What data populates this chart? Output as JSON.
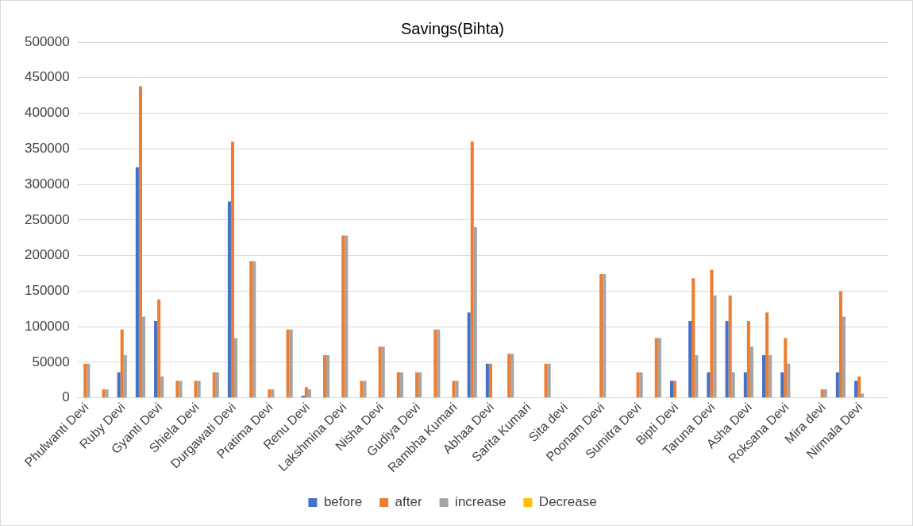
{
  "chart_data": {
    "type": "bar",
    "title": "Savings(Bihta)",
    "categories": [
      "Phulwanti Devi",
      null,
      "Ruby Devi",
      null,
      "Gyanti Devi",
      null,
      "Shiela Devi",
      null,
      "Durgawati Devi",
      null,
      "Pratima Devi",
      null,
      "Renu Devi",
      null,
      "Lakshmina Devi",
      null,
      "Nisha Devi",
      null,
      "Gudiya Devi",
      null,
      "Rambha Kumari",
      null,
      "Abhaa Devi",
      null,
      "Sarita Kumari",
      null,
      "Sita devi",
      null,
      "Poonam Devi",
      null,
      "Sumitra Devi",
      null,
      "Bipti Devi",
      null,
      "Taruna Devi",
      null,
      "Asha Devi",
      null,
      "Roksana Devi",
      null,
      "Mira devi",
      null,
      "Nirmala Devi",
      null
    ],
    "series": [
      {
        "name": "before",
        "color": "#4472c4",
        "values": [
          null,
          null,
          36000,
          324000,
          108000,
          null,
          null,
          null,
          276000,
          null,
          null,
          null,
          3000,
          null,
          null,
          null,
          null,
          null,
          null,
          null,
          null,
          120000,
          48000,
          null,
          null,
          null,
          null,
          null,
          null,
          null,
          null,
          null,
          24000,
          108000,
          36000,
          108000,
          36000,
          60000,
          36000,
          null,
          null,
          36000,
          24000,
          null
        ]
      },
      {
        "name": "after",
        "color": "#ed7d31",
        "values": [
          48000,
          12000,
          96000,
          438000,
          138000,
          24000,
          24000,
          36000,
          360000,
          192000,
          12000,
          96000,
          15000,
          60000,
          228000,
          24000,
          72000,
          36000,
          36000,
          96000,
          24000,
          360000,
          48000,
          62000,
          null,
          48000,
          null,
          null,
          174000,
          null,
          36000,
          84000,
          24000,
          168000,
          180000,
          144000,
          108000,
          120000,
          84000,
          null,
          12000,
          150000,
          30000,
          null
        ]
      },
      {
        "name": "increase",
        "color": "#a5a5a5",
        "values": [
          48000,
          12000,
          60000,
          114000,
          30000,
          24000,
          24000,
          36000,
          84000,
          192000,
          12000,
          96000,
          12000,
          60000,
          228000,
          24000,
          72000,
          36000,
          36000,
          96000,
          24000,
          240000,
          null,
          62000,
          null,
          48000,
          null,
          null,
          174000,
          null,
          36000,
          84000,
          null,
          60000,
          144000,
          36000,
          72000,
          60000,
          48000,
          null,
          12000,
          114000,
          6000,
          null
        ]
      },
      {
        "name": "Decrease",
        "color": "#ffc000",
        "values": [
          null,
          null,
          null,
          null,
          null,
          null,
          null,
          null,
          null,
          null,
          null,
          null,
          null,
          null,
          null,
          null,
          null,
          null,
          null,
          null,
          null,
          null,
          null,
          null,
          null,
          null,
          null,
          null,
          null,
          null,
          null,
          null,
          null,
          null,
          null,
          null,
          null,
          null,
          null,
          null,
          null,
          null,
          null,
          null
        ]
      }
    ],
    "ylim": [
      0,
      500000
    ],
    "yticks": [
      0,
      50000,
      100000,
      150000,
      200000,
      250000,
      300000,
      350000,
      400000,
      450000,
      500000
    ],
    "grid": "y",
    "legend": "bottom"
  }
}
